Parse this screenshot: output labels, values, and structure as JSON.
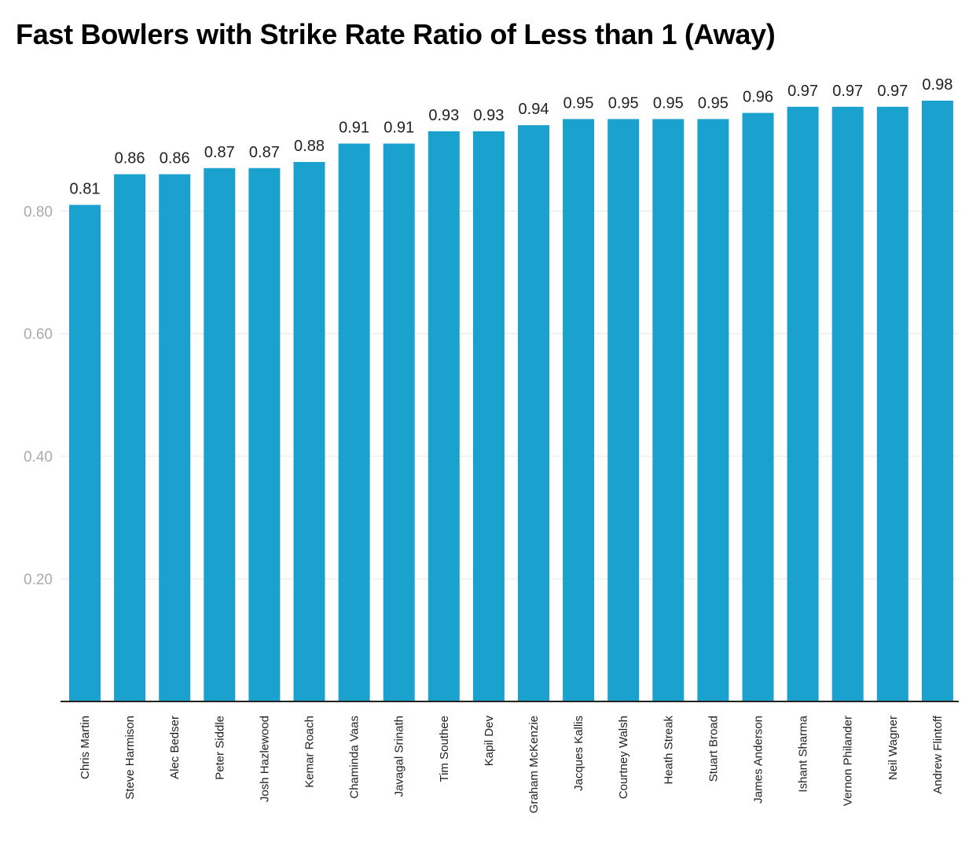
{
  "chart_data": {
    "type": "bar",
    "title": "Fast Bowlers with Strike Rate Ratio of Less than 1 (Away)",
    "xlabel": "",
    "ylabel": "",
    "categories": [
      "Chris Martin",
      "Steve Harmison",
      "Alec Bedser",
      "Peter Siddle",
      "Josh Hazlewood",
      "Kemar Roach",
      "Chaminda Vaas",
      "Javagal Srinath",
      "Tim Southee",
      "Kapil Dev",
      "Graham McKenzie",
      "Jacques Kallis",
      "Courtney Walsh",
      "Heath Streak",
      "Stuart Broad",
      "James Anderson",
      "Ishant Sharma",
      "Vernon Philander",
      "Neil Wagner",
      "Andrew Flintoff"
    ],
    "values": [
      0.81,
      0.86,
      0.86,
      0.87,
      0.87,
      0.88,
      0.91,
      0.91,
      0.93,
      0.93,
      0.94,
      0.95,
      0.95,
      0.95,
      0.95,
      0.96,
      0.97,
      0.97,
      0.97,
      0.98
    ],
    "value_labels": [
      "0.81",
      "0.86",
      "0.86",
      "0.87",
      "0.87",
      "0.88",
      "0.91",
      "0.91",
      "0.93",
      "0.93",
      "0.94",
      "0.95",
      "0.95",
      "0.95",
      "0.95",
      "0.96",
      "0.97",
      "0.97",
      "0.97",
      "0.98"
    ],
    "yticks": [
      0.2,
      0.4,
      0.6,
      0.8
    ],
    "ytick_labels": [
      "0.20",
      "0.40",
      "0.60",
      "0.80"
    ],
    "ylim": [
      0,
      0.98
    ],
    "grid": true,
    "bar_color": "#1ba1cd",
    "grid_color": "#e6e6e6",
    "axis_color": "#222222"
  }
}
